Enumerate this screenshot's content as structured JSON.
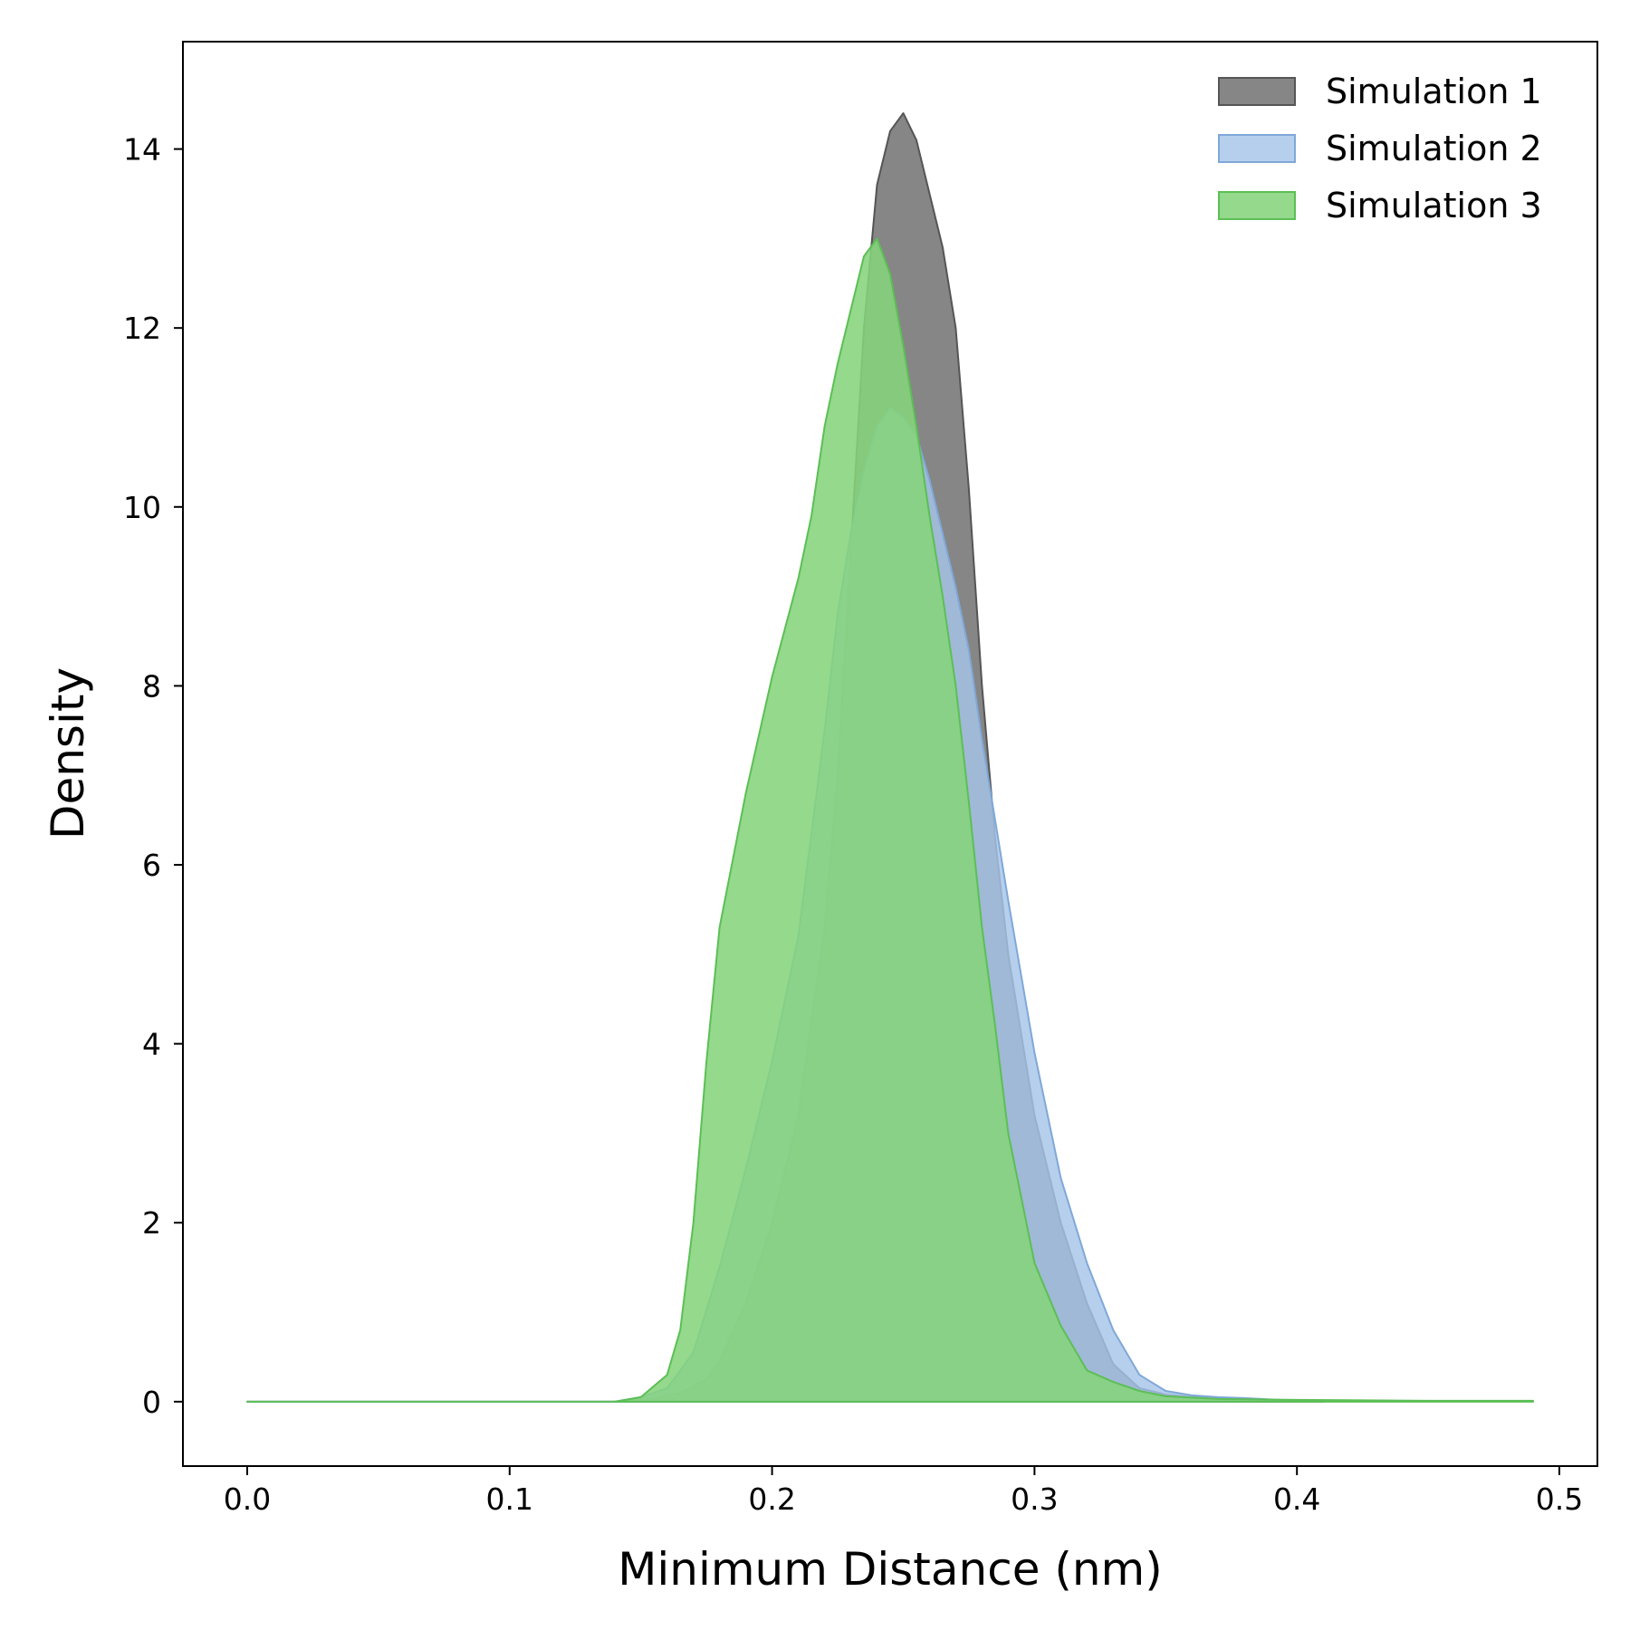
{
  "chart_data": {
    "type": "area",
    "title": "",
    "xlabel": "Minimum Distance (nm)",
    "ylabel": "Density",
    "xlim": [
      -0.0245,
      0.5145
    ],
    "ylim": [
      -0.72,
      15.2
    ],
    "xticks": [
      0.0,
      0.1,
      0.2,
      0.3,
      0.4,
      0.5
    ],
    "xtick_labels": [
      "0.0",
      "0.1",
      "0.2",
      "0.3",
      "0.4",
      "0.5"
    ],
    "yticks": [
      0,
      2,
      4,
      6,
      8,
      10,
      12,
      14
    ],
    "ytick_labels": [
      "0",
      "2",
      "4",
      "6",
      "8",
      "10",
      "12",
      "14"
    ],
    "grid": false,
    "legend_position": "top-right",
    "series": [
      {
        "name": "Simulation 1",
        "fill": "#808080",
        "edge": "#555555",
        "fill_opacity": 0.95,
        "x": [
          0.0,
          0.1,
          0.14,
          0.155,
          0.165,
          0.175,
          0.18,
          0.19,
          0.2,
          0.21,
          0.22,
          0.225,
          0.23,
          0.235,
          0.24,
          0.245,
          0.25,
          0.255,
          0.26,
          0.265,
          0.27,
          0.275,
          0.28,
          0.285,
          0.29,
          0.3,
          0.31,
          0.32,
          0.33,
          0.34,
          0.35,
          0.36,
          0.38,
          0.4,
          0.41
        ],
        "y": [
          0.0,
          0.0,
          0.0,
          0.03,
          0.1,
          0.25,
          0.45,
          1.1,
          2.0,
          3.2,
          5.3,
          7.0,
          9.5,
          12.0,
          13.6,
          14.2,
          14.4,
          14.1,
          13.5,
          12.9,
          12.0,
          10.2,
          8.0,
          6.3,
          5.0,
          3.2,
          2.0,
          1.1,
          0.42,
          0.15,
          0.08,
          0.05,
          0.03,
          0.01,
          0.0
        ]
      },
      {
        "name": "Simulation 2",
        "fill": "#a6c5e8",
        "edge": "#7fa8d8",
        "fill_opacity": 0.82,
        "x": [
          0.0,
          0.1,
          0.14,
          0.15,
          0.16,
          0.17,
          0.18,
          0.19,
          0.2,
          0.21,
          0.22,
          0.225,
          0.23,
          0.235,
          0.24,
          0.245,
          0.25,
          0.255,
          0.26,
          0.265,
          0.27,
          0.275,
          0.28,
          0.29,
          0.3,
          0.31,
          0.32,
          0.33,
          0.34,
          0.35,
          0.36,
          0.37,
          0.38,
          0.4,
          0.41
        ],
        "y": [
          0.0,
          0.0,
          0.0,
          0.05,
          0.15,
          0.55,
          1.5,
          2.6,
          3.8,
          5.2,
          7.5,
          8.8,
          9.7,
          10.4,
          10.9,
          11.1,
          11.0,
          10.8,
          10.3,
          9.7,
          9.1,
          8.4,
          7.4,
          5.6,
          3.9,
          2.5,
          1.55,
          0.8,
          0.3,
          0.12,
          0.07,
          0.05,
          0.04,
          0.01,
          0.0
        ]
      },
      {
        "name": "Simulation 3",
        "fill": "#85d47c",
        "edge": "#5cbf55",
        "fill_opacity": 0.88,
        "x": [
          0.0,
          0.1,
          0.14,
          0.15,
          0.16,
          0.165,
          0.17,
          0.175,
          0.18,
          0.19,
          0.2,
          0.21,
          0.215,
          0.22,
          0.225,
          0.23,
          0.235,
          0.24,
          0.245,
          0.25,
          0.255,
          0.26,
          0.265,
          0.27,
          0.275,
          0.28,
          0.285,
          0.29,
          0.3,
          0.31,
          0.32,
          0.33,
          0.34,
          0.35,
          0.37,
          0.4,
          0.45,
          0.49
        ],
        "y": [
          0.0,
          0.0,
          0.0,
          0.05,
          0.3,
          0.8,
          2.0,
          3.8,
          5.3,
          6.8,
          8.1,
          9.2,
          9.9,
          10.9,
          11.6,
          12.2,
          12.8,
          13.0,
          12.6,
          11.8,
          10.9,
          9.9,
          9.0,
          8.0,
          6.7,
          5.3,
          4.2,
          3.0,
          1.55,
          0.85,
          0.35,
          0.22,
          0.12,
          0.06,
          0.03,
          0.02,
          0.01,
          0.01
        ]
      }
    ]
  }
}
